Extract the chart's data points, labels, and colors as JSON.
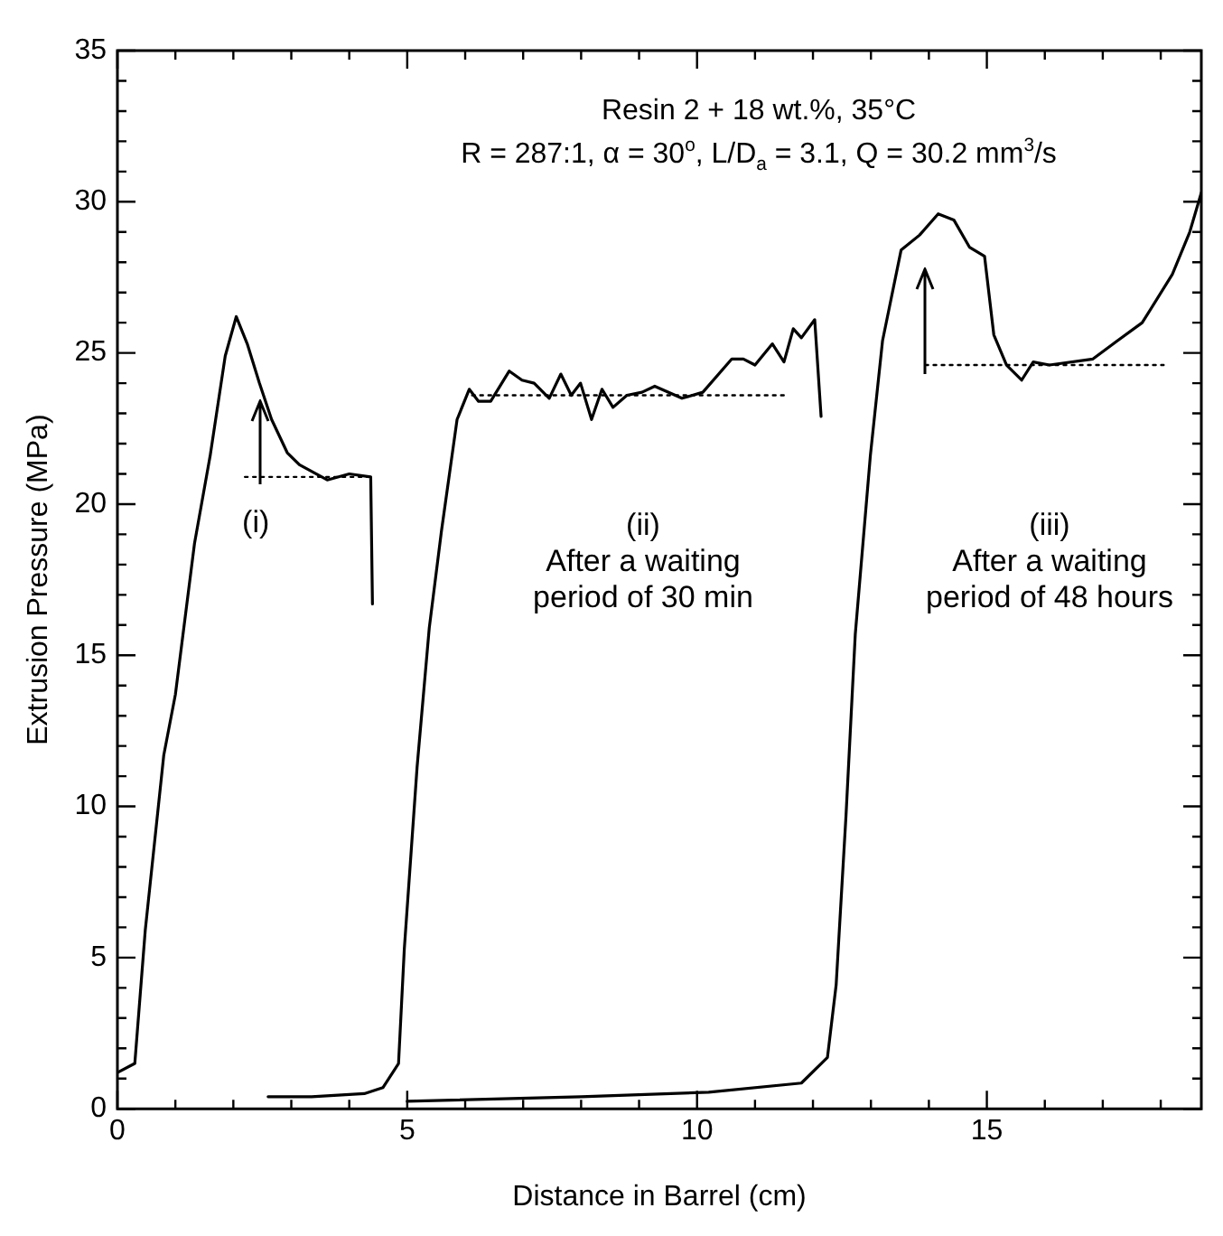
{
  "chart_data": {
    "type": "line",
    "title": "Resin 2 + 18 wt.%, 35°C",
    "subtitle": "R = 287:1, α = 30$^{o}$, L/D$_{a}$ = 3.1, Q = 30.2 mm$^{3}$/s",
    "xlabel": "Distance in Barrel (cm)",
    "ylabel": "Extrusion Pressure (MPa)",
    "xlim": [
      0,
      18.7
    ],
    "ylim": [
      0,
      35
    ],
    "xticks": [
      0,
      {
        "value": 1,
        "label": null
      },
      {
        "value": 2,
        "label": null
      },
      {
        "value": 3,
        "label": null
      },
      {
        "value": 4,
        "label": null
      },
      5,
      {
        "value": 6,
        "label": null
      },
      {
        "value": 7,
        "label": null
      },
      {
        "value": 8,
        "label": null
      },
      {
        "value": 9,
        "label": null
      },
      10,
      {
        "value": 11,
        "label": null
      },
      {
        "value": 12,
        "label": null
      },
      {
        "value": 13,
        "label": null
      },
      {
        "value": 14,
        "label": null
      },
      15,
      {
        "value": 16,
        "label": null
      },
      {
        "value": 17,
        "label": null
      },
      {
        "value": 18,
        "label": null
      }
    ],
    "yticks": [
      0,
      {
        "value": 1,
        "label": null
      },
      {
        "value": 2,
        "label": null
      },
      {
        "value": 3,
        "label": null
      },
      {
        "value": 4,
        "label": null
      },
      5,
      {
        "value": 6,
        "label": null
      },
      {
        "value": 7,
        "label": null
      },
      {
        "value": 8,
        "label": null
      },
      {
        "value": 9,
        "label": null
      },
      10,
      {
        "value": 11,
        "label": null
      },
      {
        "value": 12,
        "label": null
      },
      {
        "value": 13,
        "label": null
      },
      {
        "value": 14,
        "label": null
      },
      15,
      {
        "value": 16,
        "label": null
      },
      {
        "value": 17,
        "label": null
      },
      {
        "value": 18,
        "label": null
      },
      {
        "value": 19,
        "label": null
      },
      20,
      {
        "value": 21,
        "label": null
      },
      {
        "value": 22,
        "label": null
      },
      {
        "value": 23,
        "label": null
      },
      {
        "value": 24,
        "label": null
      },
      25,
      {
        "value": 26,
        "label": null
      },
      {
        "value": 27,
        "label": null
      },
      {
        "value": 28,
        "label": null
      },
      {
        "value": 29,
        "label": null
      },
      30,
      {
        "value": 31,
        "label": null
      },
      {
        "value": 32,
        "label": null
      },
      {
        "value": 33,
        "label": null
      },
      {
        "value": 34,
        "label": null
      },
      35
    ],
    "grid": false,
    "legend": false,
    "marker": "none",
    "series": [
      {
        "color": "#000000",
        "line_style": "solid",
        "x": [
          0,
          0.3,
          0.48,
          0.8,
          1.0,
          1.33,
          1.6,
          1.86,
          2.05,
          2.24,
          2.45,
          2.66,
          2.93,
          3.14,
          3.62,
          4.0,
          4.37,
          4.4
        ],
        "values": [
          1.2,
          1.5,
          5.9,
          11.7,
          13.7,
          18.7,
          21.6,
          24.9,
          26.2,
          25.3,
          24.0,
          22.8,
          21.7,
          21.3,
          20.8,
          21.0,
          20.9,
          16.7
        ]
      },
      {
        "color": "#000000",
        "line_style": "solid",
        "x": [
          2.6,
          3.35,
          4.26,
          4.58,
          4.85,
          4.95,
          5.17,
          5.38,
          5.59,
          5.86,
          6.07,
          6.23,
          6.44,
          6.76,
          6.98,
          7.19,
          7.45,
          7.65,
          7.83,
          7.99,
          8.18,
          8.36,
          8.55,
          8.79,
          9.05,
          9.27,
          9.74,
          10.1,
          10.6,
          10.8,
          11.0,
          11.3,
          11.5,
          11.66,
          11.8,
          12.03,
          12.14
        ],
        "values": [
          0.4,
          0.4,
          0.5,
          0.7,
          1.5,
          5.3,
          11.3,
          15.9,
          19.1,
          22.8,
          23.8,
          23.4,
          23.4,
          24.4,
          24.1,
          24.0,
          23.5,
          24.3,
          23.6,
          24.0,
          22.8,
          23.8,
          23.2,
          23.6,
          23.7,
          23.9,
          23.5,
          23.7,
          24.8,
          24.8,
          24.6,
          25.3,
          24.7,
          25.8,
          25.5,
          26.1,
          22.9
        ]
      },
      {
        "color": "#000000",
        "line_style": "solid",
        "x": [
          5.0,
          8.0,
          10.2,
          11.8,
          12.25,
          12.4,
          12.57,
          12.73,
          12.99,
          13.2,
          13.52,
          13.84,
          14.16,
          14.43,
          14.7,
          14.96,
          15.12,
          15.34,
          15.6,
          15.8,
          16.08,
          16.83,
          17.25,
          17.68,
          18.2,
          18.5,
          18.7
        ],
        "values": [
          0.25,
          0.4,
          0.55,
          0.85,
          1.7,
          4.1,
          9.7,
          15.7,
          21.6,
          25.4,
          28.4,
          28.9,
          29.6,
          29.4,
          28.5,
          28.2,
          25.6,
          24.6,
          24.1,
          24.7,
          24.6,
          24.8,
          25.4,
          26.0,
          27.6,
          29.0,
          30.3
        ]
      },
      {
        "color": "#000000",
        "line_style": "dotted",
        "x": [
          2.2,
          4.4
        ],
        "values": [
          20.9,
          20.9
        ]
      },
      {
        "color": "#000000",
        "line_style": "dotted",
        "x": [
          6.12,
          11.55
        ],
        "values": [
          23.6,
          23.6
        ]
      },
      {
        "color": "#000000",
        "line_style": "dotted",
        "x": [
          13.94,
          18.05
        ],
        "values": [
          24.6,
          24.6
        ]
      }
    ],
    "annotations": [
      {
        "text": "(i)",
        "x": 2.2,
        "y": 20.9
      },
      "(ii)\nAfter a waiting\nperiod of 30 min",
      "(iii)\nAfter a waiting\nperiod of 48 hours"
    ]
  }
}
